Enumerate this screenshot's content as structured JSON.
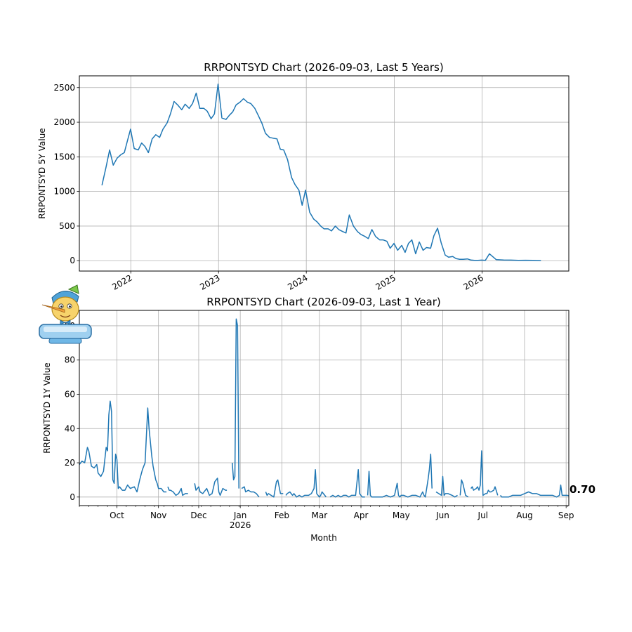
{
  "chart_data": [
    {
      "type": "line",
      "title": "RRPONTSYD Chart (2026-09-03, Last 5 Years)",
      "xlabel": "",
      "ylabel": "RRPONTSYD 5Y Value",
      "xlim": [
        "2021-06-01",
        "2026-12-28"
      ],
      "ylim": [
        -150,
        2670
      ],
      "yticks": [
        0,
        500,
        1000,
        1500,
        2000,
        2500
      ],
      "xticks": [
        {
          "date": "2022-01-01",
          "label": "2022"
        },
        {
          "date": "2023-01-01",
          "label": "2023"
        },
        {
          "date": "2024-01-01",
          "label": "2024"
        },
        {
          "date": "2025-01-01",
          "label": "2025"
        },
        {
          "date": "2026-01-01",
          "label": "2026"
        }
      ],
      "grid": true,
      "color": "#1f77b4",
      "series": [
        {
          "x": [
            "2021-09-03",
            "2021-09-20",
            "2021-10-05",
            "2021-10-20",
            "2021-11-05",
            "2021-11-20",
            "2021-12-05",
            "2021-12-20",
            "2021-12-31",
            "2022-01-15",
            "2022-02-01",
            "2022-02-15",
            "2022-03-01",
            "2022-03-15",
            "2022-03-31",
            "2022-04-15",
            "2022-05-01",
            "2022-05-15",
            "2022-06-01",
            "2022-06-15",
            "2022-06-30",
            "2022-07-15",
            "2022-08-01",
            "2022-08-15",
            "2022-09-01",
            "2022-09-15",
            "2022-09-30",
            "2022-10-15",
            "2022-11-01",
            "2022-11-15",
            "2022-12-01",
            "2022-12-15",
            "2022-12-30",
            "2023-01-15",
            "2023-02-01",
            "2023-02-15",
            "2023-03-01",
            "2023-03-15",
            "2023-03-31",
            "2023-04-15",
            "2023-05-01",
            "2023-05-15",
            "2023-06-01",
            "2023-06-15",
            "2023-06-30",
            "2023-07-15",
            "2023-08-01",
            "2023-08-15",
            "2023-09-01",
            "2023-09-15",
            "2023-09-29",
            "2023-10-15",
            "2023-11-01",
            "2023-11-15",
            "2023-12-01",
            "2023-12-15",
            "2023-12-29",
            "2024-01-15",
            "2024-02-01",
            "2024-02-15",
            "2024-03-01",
            "2024-03-15",
            "2024-04-01",
            "2024-04-15",
            "2024-05-01",
            "2024-05-15",
            "2024-06-01",
            "2024-06-14",
            "2024-06-28",
            "2024-07-15",
            "2024-08-01",
            "2024-08-15",
            "2024-09-01",
            "2024-09-15",
            "2024-09-30",
            "2024-10-15",
            "2024-11-01",
            "2024-11-15",
            "2024-12-01",
            "2024-12-15",
            "2024-12-31",
            "2025-01-15",
            "2025-02-01",
            "2025-02-15",
            "2025-03-01",
            "2025-03-15",
            "2025-03-31",
            "2025-04-15",
            "2025-05-01",
            "2025-05-15",
            "2025-06-01",
            "2025-06-15",
            "2025-06-30",
            "2025-07-15",
            "2025-08-01",
            "2025-08-15",
            "2025-09-01",
            "2025-09-15",
            "2025-09-30",
            "2025-10-15",
            "2025-11-01",
            "2025-11-15",
            "2025-12-01",
            "2025-12-15",
            "2025-12-31",
            "2026-01-15",
            "2026-02-01",
            "2026-03-01",
            "2026-04-01",
            "2026-05-01",
            "2026-06-01",
            "2026-07-01",
            "2026-08-01",
            "2026-09-03"
          ],
          "y": [
            1090,
            1350,
            1600,
            1380,
            1480,
            1530,
            1560,
            1760,
            1900,
            1620,
            1600,
            1700,
            1650,
            1560,
            1760,
            1820,
            1780,
            1900,
            1990,
            2120,
            2300,
            2250,
            2180,
            2260,
            2200,
            2270,
            2420,
            2200,
            2200,
            2160,
            2050,
            2120,
            2550,
            2060,
            2040,
            2100,
            2150,
            2250,
            2290,
            2340,
            2290,
            2270,
            2200,
            2100,
            1990,
            1840,
            1780,
            1770,
            1760,
            1610,
            1600,
            1460,
            1200,
            1100,
            1020,
            800,
            1020,
            700,
            600,
            560,
            500,
            460,
            460,
            430,
            500,
            450,
            420,
            400,
            660,
            500,
            420,
            380,
            350,
            320,
            450,
            350,
            300,
            300,
            280,
            180,
            250,
            150,
            220,
            120,
            250,
            300,
            100,
            270,
            150,
            190,
            180,
            360,
            470,
            260,
            80,
            50,
            60,
            30,
            20,
            20,
            25,
            10,
            5,
            5,
            8,
            5,
            100,
            15,
            10,
            8,
            5,
            6,
            4,
            1
          ]
        }
      ]
    },
    {
      "type": "line",
      "title": "RRPONTSYD Chart (2026-09-03, Last 1 Year)",
      "xlabel": "Month",
      "ylabel": "RRPONTSYD 1Y Value",
      "xlim": [
        "2025-09-03",
        "2026-09-03"
      ],
      "ylim": [
        -5,
        109
      ],
      "yticks": [
        0,
        20,
        40,
        60,
        80,
        100
      ],
      "xticks": [
        {
          "date": "2025-10-01",
          "label": "Oct"
        },
        {
          "date": "2025-11-01",
          "label": "Nov"
        },
        {
          "date": "2025-12-01",
          "label": "Dec"
        },
        {
          "date": "2026-01-01",
          "label": "Jan",
          "sublabel": "2026"
        },
        {
          "date": "2026-02-01",
          "label": "Feb"
        },
        {
          "date": "2026-03-01",
          "label": "Mar"
        },
        {
          "date": "2026-04-01",
          "label": "Apr"
        },
        {
          "date": "2026-05-01",
          "label": "May"
        },
        {
          "date": "2026-06-01",
          "label": "Jun"
        },
        {
          "date": "2026-07-01",
          "label": "Jul"
        },
        {
          "date": "2026-08-01",
          "label": "Aug"
        },
        {
          "date": "2026-09-01",
          "label": "Sep"
        }
      ],
      "grid": true,
      "color": "#1f77b4",
      "last_value_label": "0.70",
      "segments": [
        {
          "x": [
            "2025-09-03",
            "2025-09-05",
            "2025-09-07",
            "2025-09-09",
            "2025-09-10",
            "2025-09-12",
            "2025-09-14",
            "2025-09-16",
            "2025-09-17",
            "2025-09-19",
            "2025-09-21",
            "2025-09-23",
            "2025-09-24",
            "2025-09-25",
            "2025-09-26",
            "2025-09-27",
            "2025-09-28",
            "2025-09-29",
            "2025-09-30",
            "2025-10-01",
            "2025-10-02",
            "2025-10-03",
            "2025-10-04",
            "2025-10-05",
            "2025-10-07",
            "2025-10-09",
            "2025-10-11",
            "2025-10-14",
            "2025-10-16",
            "2025-10-18",
            "2025-10-20",
            "2025-10-22",
            "2025-10-24",
            "2025-10-25",
            "2025-10-27",
            "2025-10-28",
            "2025-10-29",
            "2025-10-30",
            "2025-10-31",
            "2025-11-01",
            "2025-11-03",
            "2025-11-05",
            "2025-11-07"
          ],
          "y": [
            19,
            21,
            20,
            29,
            27,
            18,
            17,
            19,
            14,
            12,
            15,
            29,
            27,
            48,
            56,
            50,
            10,
            8,
            25,
            22,
            5,
            6,
            5,
            4,
            4,
            7,
            5,
            6,
            3,
            10,
            16,
            20,
            52,
            40,
            24,
            18,
            14,
            10,
            8,
            5,
            5,
            3,
            3
          ]
        },
        {
          "x": [
            "2025-11-08",
            "2025-11-09",
            "2025-11-10",
            "2025-11-12",
            "2025-11-14",
            "2025-11-16",
            "2025-11-18",
            "2025-11-19",
            "2025-11-21",
            "2025-11-23"
          ],
          "y": [
            6,
            4,
            4,
            3,
            1,
            2,
            5,
            1,
            2,
            2
          ]
        },
        {
          "x": [
            "2025-11-28",
            "2025-11-29",
            "2025-12-01",
            "2025-12-02",
            "2025-12-04",
            "2025-12-07",
            "2025-12-09",
            "2025-12-11",
            "2025-12-13",
            "2025-12-15",
            "2025-12-16",
            "2025-12-17",
            "2025-12-19",
            "2025-12-21",
            "2025-12-22"
          ],
          "y": [
            8,
            4,
            6,
            3,
            2,
            5,
            1,
            2,
            9,
            11,
            3,
            1,
            5,
            4,
            4
          ]
        },
        {
          "x": [
            "2025-12-26",
            "2025-12-27",
            "2025-12-28",
            "2025-12-29",
            "2025-12-30",
            "2025-12-31"
          ],
          "y": [
            20,
            10,
            12,
            104,
            100,
            5
          ]
        },
        {
          "x": [
            "2026-01-02",
            "2026-01-04",
            "2026-01-05",
            "2026-01-07",
            "2026-01-09",
            "2026-01-11",
            "2026-01-13",
            "2026-01-15"
          ],
          "y": [
            5,
            6,
            3,
            4,
            3,
            3,
            2,
            0
          ]
        },
        {
          "x": [
            "2026-01-20",
            "2026-01-21",
            "2026-01-22",
            "2026-01-24",
            "2026-01-26",
            "2026-01-28",
            "2026-01-29",
            "2026-01-31",
            "2026-02-02"
          ],
          "y": [
            3,
            1,
            2,
            1,
            0,
            9,
            10,
            2,
            2
          ]
        },
        {
          "x": [
            "2026-02-04",
            "2026-02-05",
            "2026-02-07",
            "2026-02-09",
            "2026-02-10",
            "2026-02-12",
            "2026-02-14",
            "2026-02-16",
            "2026-02-18",
            "2026-02-21",
            "2026-02-23",
            "2026-02-25",
            "2026-02-26",
            "2026-02-27",
            "2026-03-01",
            "2026-03-02",
            "2026-03-03",
            "2026-03-05",
            "2026-03-06"
          ],
          "y": [
            1,
            2,
            3,
            1,
            2,
            0,
            1,
            0,
            1,
            1,
            2,
            5,
            16,
            2,
            0,
            1,
            3,
            1,
            0
          ]
        },
        {
          "x": [
            "2026-03-09",
            "2026-03-11",
            "2026-03-13",
            "2026-03-15",
            "2026-03-17",
            "2026-03-19",
            "2026-03-21",
            "2026-03-23",
            "2026-03-25",
            "2026-03-28",
            "2026-03-30",
            "2026-03-31",
            "2026-04-01",
            "2026-04-02",
            "2026-04-04"
          ],
          "y": [
            0,
            1,
            0,
            1,
            0,
            1,
            1,
            0,
            1,
            1,
            16,
            2,
            1,
            0,
            0
          ]
        },
        {
          "x": [
            "2026-04-06",
            "2026-04-07",
            "2026-04-08",
            "2026-04-09",
            "2026-04-11",
            "2026-04-14",
            "2026-04-17",
            "2026-04-20",
            "2026-04-23",
            "2026-04-26",
            "2026-04-28",
            "2026-04-29",
            "2026-04-30",
            "2026-05-01",
            "2026-05-03",
            "2026-05-06",
            "2026-05-09",
            "2026-05-12",
            "2026-05-15",
            "2026-05-17",
            "2026-05-18",
            "2026-05-19",
            "2026-05-20",
            "2026-05-21",
            "2026-05-22",
            "2026-05-23",
            "2026-05-24"
          ],
          "y": [
            1,
            15,
            1,
            0,
            0,
            0,
            0,
            1,
            0,
            1,
            8,
            1,
            0,
            1,
            1,
            0,
            1,
            1,
            0,
            3,
            1,
            0,
            5,
            10,
            16,
            25,
            5
          ]
        },
        {
          "x": [
            "2026-05-27",
            "2026-05-29",
            "2026-05-31",
            "2026-06-01",
            "2026-06-02",
            "2026-06-03",
            "2026-06-05",
            "2026-06-08",
            "2026-06-10",
            "2026-06-12"
          ],
          "y": [
            3,
            2,
            1,
            12,
            1,
            2,
            2,
            1,
            0,
            1
          ]
        },
        {
          "x": [
            "2026-06-14",
            "2026-06-15",
            "2026-06-16",
            "2026-06-18",
            "2026-06-20"
          ],
          "y": [
            1,
            10,
            8,
            1,
            0
          ]
        },
        {
          "x": [
            "2026-06-22",
            "2026-06-23",
            "2026-06-24",
            "2026-06-26",
            "2026-06-27",
            "2026-06-28",
            "2026-06-29",
            "2026-06-30",
            "2026-07-01",
            "2026-07-03",
            "2026-07-04",
            "2026-07-05",
            "2026-07-06",
            "2026-07-07",
            "2026-07-09",
            "2026-07-10",
            "2026-07-12"
          ],
          "y": [
            5,
            6,
            4,
            5,
            6,
            4,
            7,
            27,
            1,
            2,
            2,
            4,
            3,
            3,
            4,
            6,
            1
          ]
        },
        {
          "x": [
            "2026-07-14",
            "2026-07-15",
            "2026-07-17",
            "2026-07-20",
            "2026-07-23",
            "2026-07-26",
            "2026-07-29",
            "2026-08-01",
            "2026-08-04",
            "2026-08-07",
            "2026-08-10",
            "2026-08-13",
            "2026-08-16",
            "2026-08-19",
            "2026-08-22",
            "2026-08-25",
            "2026-08-27",
            "2026-08-28",
            "2026-08-29",
            "2026-08-31",
            "2026-09-01",
            "2026-09-02",
            "2026-09-03"
          ],
          "y": [
            1,
            0,
            0,
            0,
            1,
            1,
            1,
            2,
            3,
            2,
            2,
            1,
            1,
            1,
            1,
            0,
            1,
            7,
            1,
            1,
            1,
            1,
            0.7
          ]
        }
      ]
    }
  ]
}
